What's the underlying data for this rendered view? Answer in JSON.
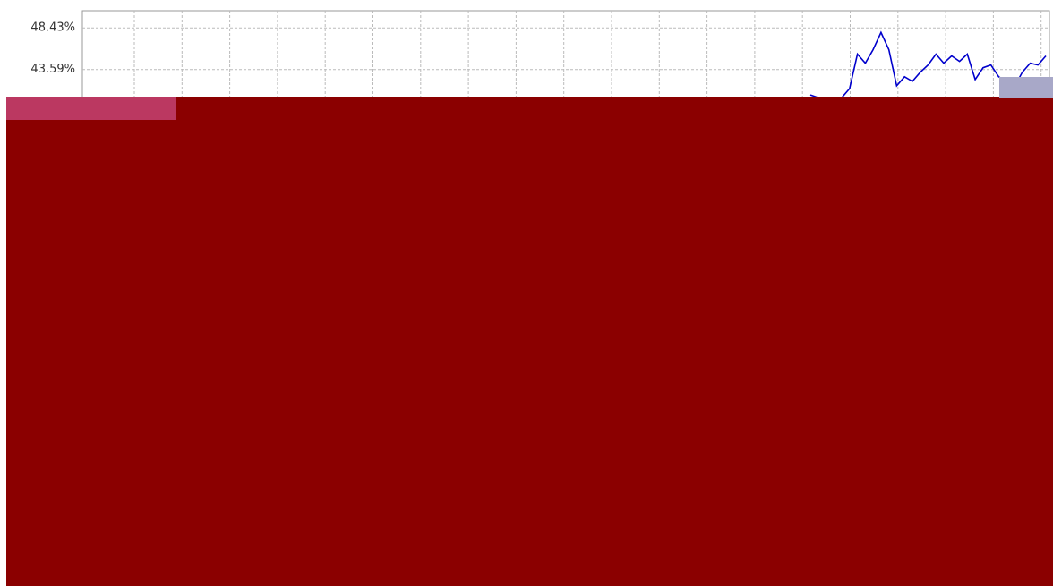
{
  "chart_data": {
    "type": "line",
    "ylim": [
      -16.17,
      50.43
    ],
    "yticks": [
      {
        "value": 48.43,
        "label": "48.43%"
      },
      {
        "value": 43.59,
        "label": "43.59%"
      }
    ],
    "grid": true,
    "series": [
      {
        "color": "#0000cc",
        "values": [
          40.64,
          40.33,
          40.33,
          40.12,
          40.33,
          41.38,
          45.38,
          44.33,
          45.9,
          47.9,
          45.9,
          41.7,
          42.75,
          42.22,
          43.27,
          44.12,
          45.38,
          44.33,
          45.17,
          44.54,
          45.38,
          42.43,
          43.8,
          44.12,
          42.75,
          42.22,
          41.59,
          43.27,
          44.33,
          44.12,
          45.17
        ]
      }
    ]
  }
}
